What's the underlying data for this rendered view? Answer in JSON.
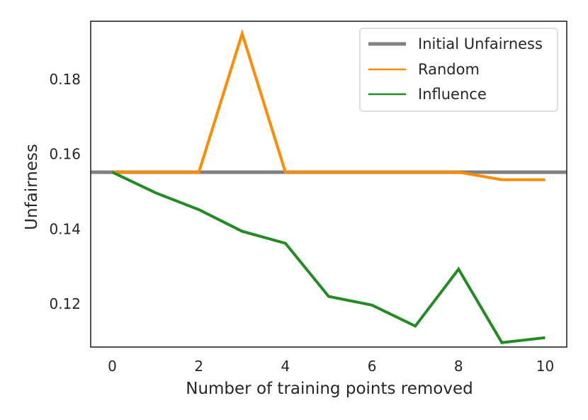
{
  "chart_data": {
    "type": "line",
    "title": "",
    "xlabel": "Number of training points removed",
    "ylabel": "Unfairness",
    "xlim": [
      -0.5,
      10.5
    ],
    "ylim": [
      0.1085,
      0.1955
    ],
    "x_ticks": [
      0,
      2,
      4,
      6,
      8,
      10
    ],
    "y_ticks": [
      0.12,
      0.14,
      0.16,
      0.18
    ],
    "x_tick_labels": [
      "0",
      "2",
      "4",
      "6",
      "8",
      "10"
    ],
    "y_tick_labels": [
      "0.12",
      "0.14",
      "0.16",
      "0.18"
    ],
    "grid": false,
    "legend": "top-right",
    "x": [
      0,
      1,
      2,
      3,
      4,
      5,
      6,
      7,
      8,
      9,
      10
    ],
    "hline": {
      "name": "Initial Unfairness",
      "value": 0.1552,
      "color": "#808080"
    },
    "series": [
      {
        "name": "Random",
        "color": "#ff8c00",
        "values": [
          0.1552,
          0.1552,
          0.1552,
          0.1922,
          0.1552,
          0.1552,
          0.1552,
          0.1552,
          0.1552,
          0.1532,
          0.1532
        ]
      },
      {
        "name": "Influence",
        "color": "#228b22",
        "values": [
          0.1552,
          0.1497,
          0.1452,
          0.1394,
          0.1362,
          0.122,
          0.1197,
          0.1141,
          0.1293,
          0.1097,
          0.111
        ]
      }
    ]
  }
}
